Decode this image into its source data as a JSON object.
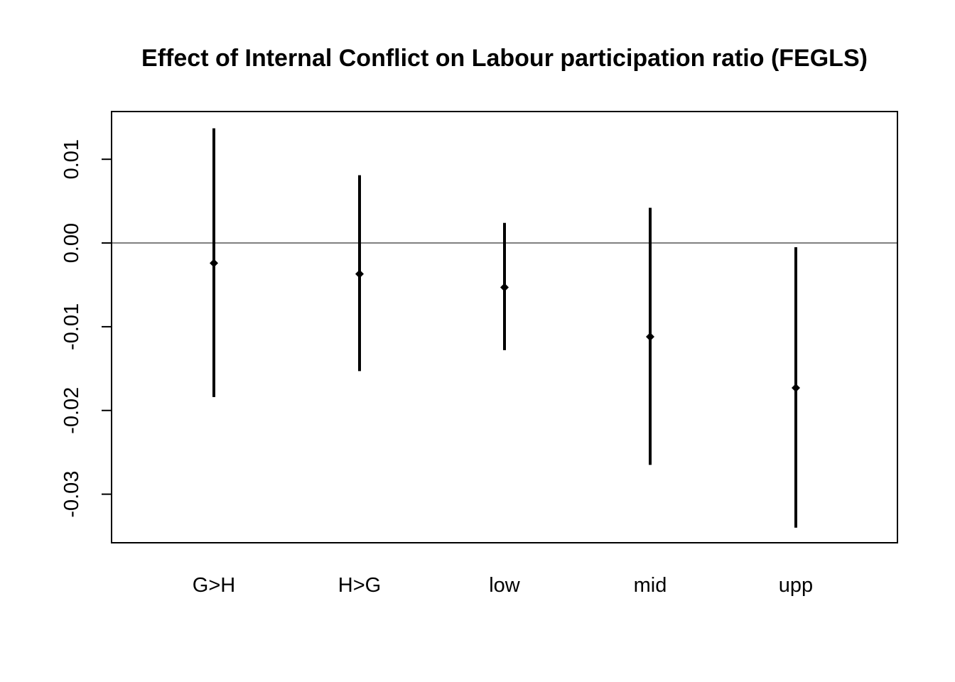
{
  "chart_data": {
    "type": "scatter",
    "title": "Effect of Internal Conflict on Labour participation ratio (FEGLS)",
    "xlabel": "",
    "ylabel": "",
    "categories": [
      "G>H",
      "H>G",
      "low",
      "mid",
      "upp"
    ],
    "series": [
      {
        "estimate": [
          -0.0024,
          -0.0037,
          -0.0053,
          -0.0112,
          -0.0173
        ],
        "lower": [
          -0.0184,
          -0.0153,
          -0.0128,
          -0.0265,
          -0.034
        ],
        "upper": [
          0.0137,
          0.0081,
          0.0024,
          0.0042,
          -0.0005
        ]
      }
    ],
    "yticks": [
      0.01,
      0.0,
      -0.01,
      -0.02,
      -0.03
    ],
    "ytick_labels": [
      "0.01",
      "0.00",
      "-0.01",
      "-0.02",
      "-0.03"
    ],
    "ylim": [
      -0.0358,
      0.0157
    ],
    "reference_line": 0,
    "grid": false,
    "colors": {
      "marks": "#000000",
      "background": "#ffffff"
    }
  }
}
